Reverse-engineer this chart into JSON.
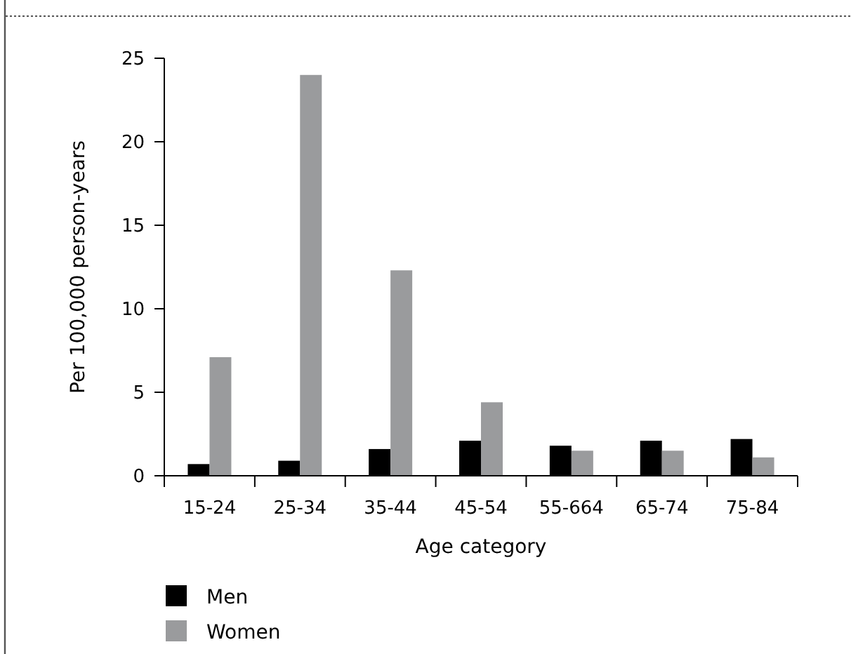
{
  "chart_data": {
    "type": "bar",
    "xlabel": "Age category",
    "ylabel": "Per 100,000 person-years",
    "categories": [
      "15-24",
      "25-34",
      "35-44",
      "45-54",
      "55-664",
      "65-74",
      "75-84"
    ],
    "series": [
      {
        "name": "Men",
        "color": "#000000",
        "values": [
          0.7,
          0.9,
          1.6,
          2.1,
          1.8,
          2.1,
          2.2
        ]
      },
      {
        "name": "Women",
        "color": "#9a9b9d",
        "values": [
          7.1,
          24.0,
          12.3,
          4.4,
          1.5,
          1.5,
          1.1
        ]
      }
    ],
    "ylim": [
      0,
      25
    ],
    "yticks": [
      0,
      5,
      10,
      15,
      20,
      25
    ],
    "grid": false,
    "legend": "bottom left"
  }
}
